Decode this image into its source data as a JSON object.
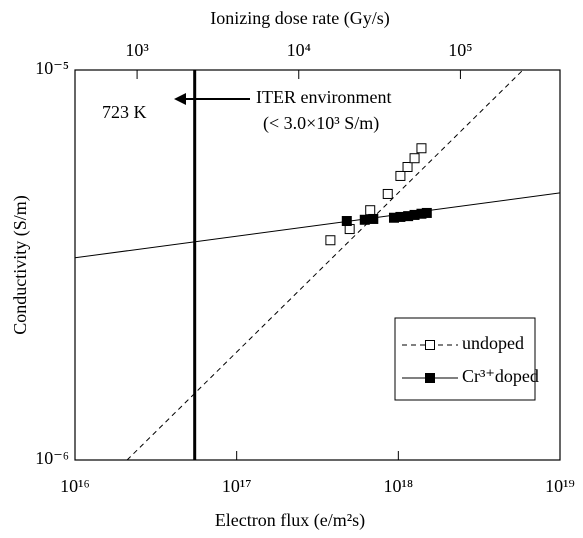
{
  "chart_data": {
    "type": "scatter",
    "x_label": "Electron flux  (e/m²s)",
    "y_label": "Conductivity  (S/m)",
    "x2_label": "Ionizing dose rate  (Gy/s)",
    "log_x": true,
    "log_y": true,
    "xlim": [
      1e+16,
      1e+19
    ],
    "xticks": [
      {
        "value": 1e+16,
        "label": "10¹⁶"
      },
      {
        "value": 1e+17,
        "label": "10¹⁷"
      },
      {
        "value": 1e+18,
        "label": "10¹⁸"
      },
      {
        "value": 1e+19,
        "label": "10¹⁹"
      }
    ],
    "x2lim": [
      413,
      413000
    ],
    "x2ticks": [
      {
        "value": 1000,
        "label": "10³"
      },
      {
        "value": 10000,
        "label": "10⁴"
      },
      {
        "value": 100000,
        "label": "10⁵"
      }
    ],
    "ylim": [
      1e-06,
      1e-05
    ],
    "yticks": [
      {
        "value": 1e-06,
        "label": "10⁻⁶"
      },
      {
        "value": 1e-05,
        "label": "10⁻⁵"
      }
    ],
    "reference_x": 5.5e+16,
    "annotations": [
      "723  K",
      "ITER environment",
      "(< 3.0×10³ S/m)"
    ],
    "series": [
      {
        "name": "undoped",
        "marker": "open-square",
        "line": "dashed",
        "color": "#000000",
        "x": [
          3.8e+17,
          5e+17,
          6.7e+17,
          8.6e+17,
          1.03e+18,
          1.14e+18,
          1.26e+18,
          1.39e+18
        ],
        "values": [
          3.66e-06,
          3.91e-06,
          4.37e-06,
          4.81e-06,
          5.35e-06,
          5.64e-06,
          5.94e-06,
          6.3e-06
        ],
        "fit": {
          "x": [
            2.1e+16,
            5.9e+18
          ],
          "values": [
            1e-06,
            1e-05
          ]
        }
      },
      {
        "name": "Cr³⁺doped",
        "marker": "filled-square",
        "line": "solid",
        "color": "#000000",
        "x": [
          4.8e+17,
          6.2e+17,
          7e+17,
          9.4e+17,
          1.03e+18,
          1.15e+18,
          1.26e+18,
          1.39e+18,
          1.5e+18
        ],
        "values": [
          4.1e-06,
          4.13e-06,
          4.15e-06,
          4.18e-06,
          4.2e-06,
          4.22e-06,
          4.25e-06,
          4.28e-06,
          4.3e-06
        ],
        "fit": {
          "x": [
            1e+16,
            1e+19
          ],
          "values": [
            3.3e-06,
            4.84e-06
          ]
        }
      }
    ]
  }
}
